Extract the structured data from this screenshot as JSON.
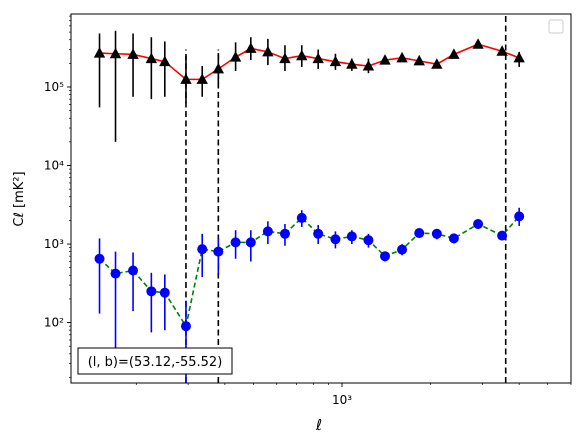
{
  "chart_data": {
    "type": "scatter",
    "title": "",
    "xlabel": "ℓ",
    "ylabel": "Cℓ  [mK²]",
    "xscale": "log",
    "yscale": "log",
    "xlim": [
      120,
      6000
    ],
    "ylim": [
      17,
      850000
    ],
    "x_ticks_major": [
      {
        "value": 1000,
        "label": "10³"
      }
    ],
    "y_ticks_major": [
      {
        "value": 100,
        "label": "10²"
      },
      {
        "value": 1000,
        "label": "10³"
      },
      {
        "value": 10000,
        "label": "10⁴"
      },
      {
        "value": 100000,
        "label": "10⁵"
      }
    ],
    "grid": false,
    "legend": {
      "placement": "top-right",
      "entries": []
    },
    "annotation": "(l, b)=(53.12,-55.52)",
    "vlines": [
      {
        "x": 295,
        "ymin": 17,
        "ymax": 300000
      },
      {
        "x": 380,
        "ymin": 17,
        "ymax": 300000
      },
      {
        "x": 3600,
        "ymin": 17,
        "ymax": 850000
      }
    ],
    "series": [
      {
        "marker": "triangle",
        "marker_color": "#000000",
        "line_color": "#ff0000",
        "line_style": "solid",
        "errorbar_color": "#000000",
        "points": [
          {
            "x": 150,
            "y": 270000,
            "lo": 55000,
            "hi": 480000
          },
          {
            "x": 170,
            "y": 265000,
            "lo": 20000,
            "hi": 520000
          },
          {
            "x": 195,
            "y": 260000,
            "lo": 75000,
            "hi": 480000
          },
          {
            "x": 225,
            "y": 230000,
            "lo": 70000,
            "hi": 430000
          },
          {
            "x": 250,
            "y": 210000,
            "lo": 75000,
            "hi": 380000
          },
          {
            "x": 295,
            "y": 125000,
            "lo": 62000,
            "hi": 250000
          },
          {
            "x": 335,
            "y": 125000,
            "lo": 75000,
            "hi": 185000
          },
          {
            "x": 380,
            "y": 170000,
            "lo": 110000,
            "hi": 270000
          },
          {
            "x": 435,
            "y": 240000,
            "lo": 160000,
            "hi": 370000
          },
          {
            "x": 490,
            "y": 310000,
            "lo": 220000,
            "hi": 430000
          },
          {
            "x": 560,
            "y": 280000,
            "lo": 190000,
            "hi": 410000
          },
          {
            "x": 640,
            "y": 230000,
            "lo": 160000,
            "hi": 340000
          },
          {
            "x": 730,
            "y": 250000,
            "lo": 180000,
            "hi": 340000
          },
          {
            "x": 830,
            "y": 230000,
            "lo": 170000,
            "hi": 300000
          },
          {
            "x": 950,
            "y": 210000,
            "lo": 165000,
            "hi": 265000
          },
          {
            "x": 1080,
            "y": 195000,
            "lo": 160000,
            "hi": 230000
          },
          {
            "x": 1230,
            "y": 185000,
            "lo": 150000,
            "hi": 230000
          },
          {
            "x": 1400,
            "y": 220000,
            "lo": 200000,
            "hi": 245000
          },
          {
            "x": 1600,
            "y": 235000,
            "lo": 215000,
            "hi": 260000
          },
          {
            "x": 1830,
            "y": 215000,
            "lo": 195000,
            "hi": 235000
          },
          {
            "x": 2100,
            "y": 195000,
            "lo": 180000,
            "hi": 210000
          },
          {
            "x": 2400,
            "y": 260000,
            "lo": 240000,
            "hi": 285000
          },
          {
            "x": 2900,
            "y": 350000,
            "lo": 330000,
            "hi": 380000
          },
          {
            "x": 3500,
            "y": 285000,
            "lo": 265000,
            "hi": 305000
          },
          {
            "x": 4000,
            "y": 235000,
            "lo": 180000,
            "hi": 280000
          }
        ]
      },
      {
        "marker": "circle",
        "marker_color": "#0000ff",
        "line_color": "#008000",
        "line_style": "dashed",
        "errorbar_color": "#0000ff",
        "points": [
          {
            "x": 150,
            "y": 650,
            "lo": 130,
            "hi": 1180
          },
          {
            "x": 170,
            "y": 420,
            "lo": 30,
            "hi": 800
          },
          {
            "x": 195,
            "y": 460,
            "lo": 140,
            "hi": 780
          },
          {
            "x": 225,
            "y": 250,
            "lo": 75,
            "hi": 430
          },
          {
            "x": 250,
            "y": 240,
            "lo": 80,
            "hi": 410
          },
          {
            "x": 295,
            "y": 90,
            "lo": 17,
            "hi": 190
          },
          {
            "x": 335,
            "y": 860,
            "lo": 380,
            "hi": 1350
          },
          {
            "x": 380,
            "y": 800,
            "lo": 420,
            "hi": 1200
          },
          {
            "x": 435,
            "y": 1050,
            "lo": 650,
            "hi": 1500
          },
          {
            "x": 490,
            "y": 1050,
            "lo": 600,
            "hi": 1500
          },
          {
            "x": 560,
            "y": 1450,
            "lo": 1000,
            "hi": 1950
          },
          {
            "x": 640,
            "y": 1350,
            "lo": 950,
            "hi": 1800
          },
          {
            "x": 730,
            "y": 2150,
            "lo": 1650,
            "hi": 2700
          },
          {
            "x": 830,
            "y": 1350,
            "lo": 1000,
            "hi": 1750
          },
          {
            "x": 950,
            "y": 1150,
            "lo": 880,
            "hi": 1450
          },
          {
            "x": 1080,
            "y": 1250,
            "lo": 1000,
            "hi": 1500
          },
          {
            "x": 1230,
            "y": 1120,
            "lo": 900,
            "hi": 1350
          },
          {
            "x": 1400,
            "y": 700,
            "lo": 600,
            "hi": 800
          },
          {
            "x": 1600,
            "y": 850,
            "lo": 720,
            "hi": 1000
          },
          {
            "x": 1830,
            "y": 1380,
            "lo": 1200,
            "hi": 1550
          },
          {
            "x": 2100,
            "y": 1350,
            "lo": 1150,
            "hi": 1550
          },
          {
            "x": 2400,
            "y": 1180,
            "lo": 1020,
            "hi": 1350
          },
          {
            "x": 2900,
            "y": 1800,
            "lo": 1550,
            "hi": 2050
          },
          {
            "x": 3500,
            "y": 1280,
            "lo": 1120,
            "hi": 1450
          },
          {
            "x": 4000,
            "y": 2250,
            "lo": 1700,
            "hi": 2900
          }
        ]
      }
    ]
  }
}
